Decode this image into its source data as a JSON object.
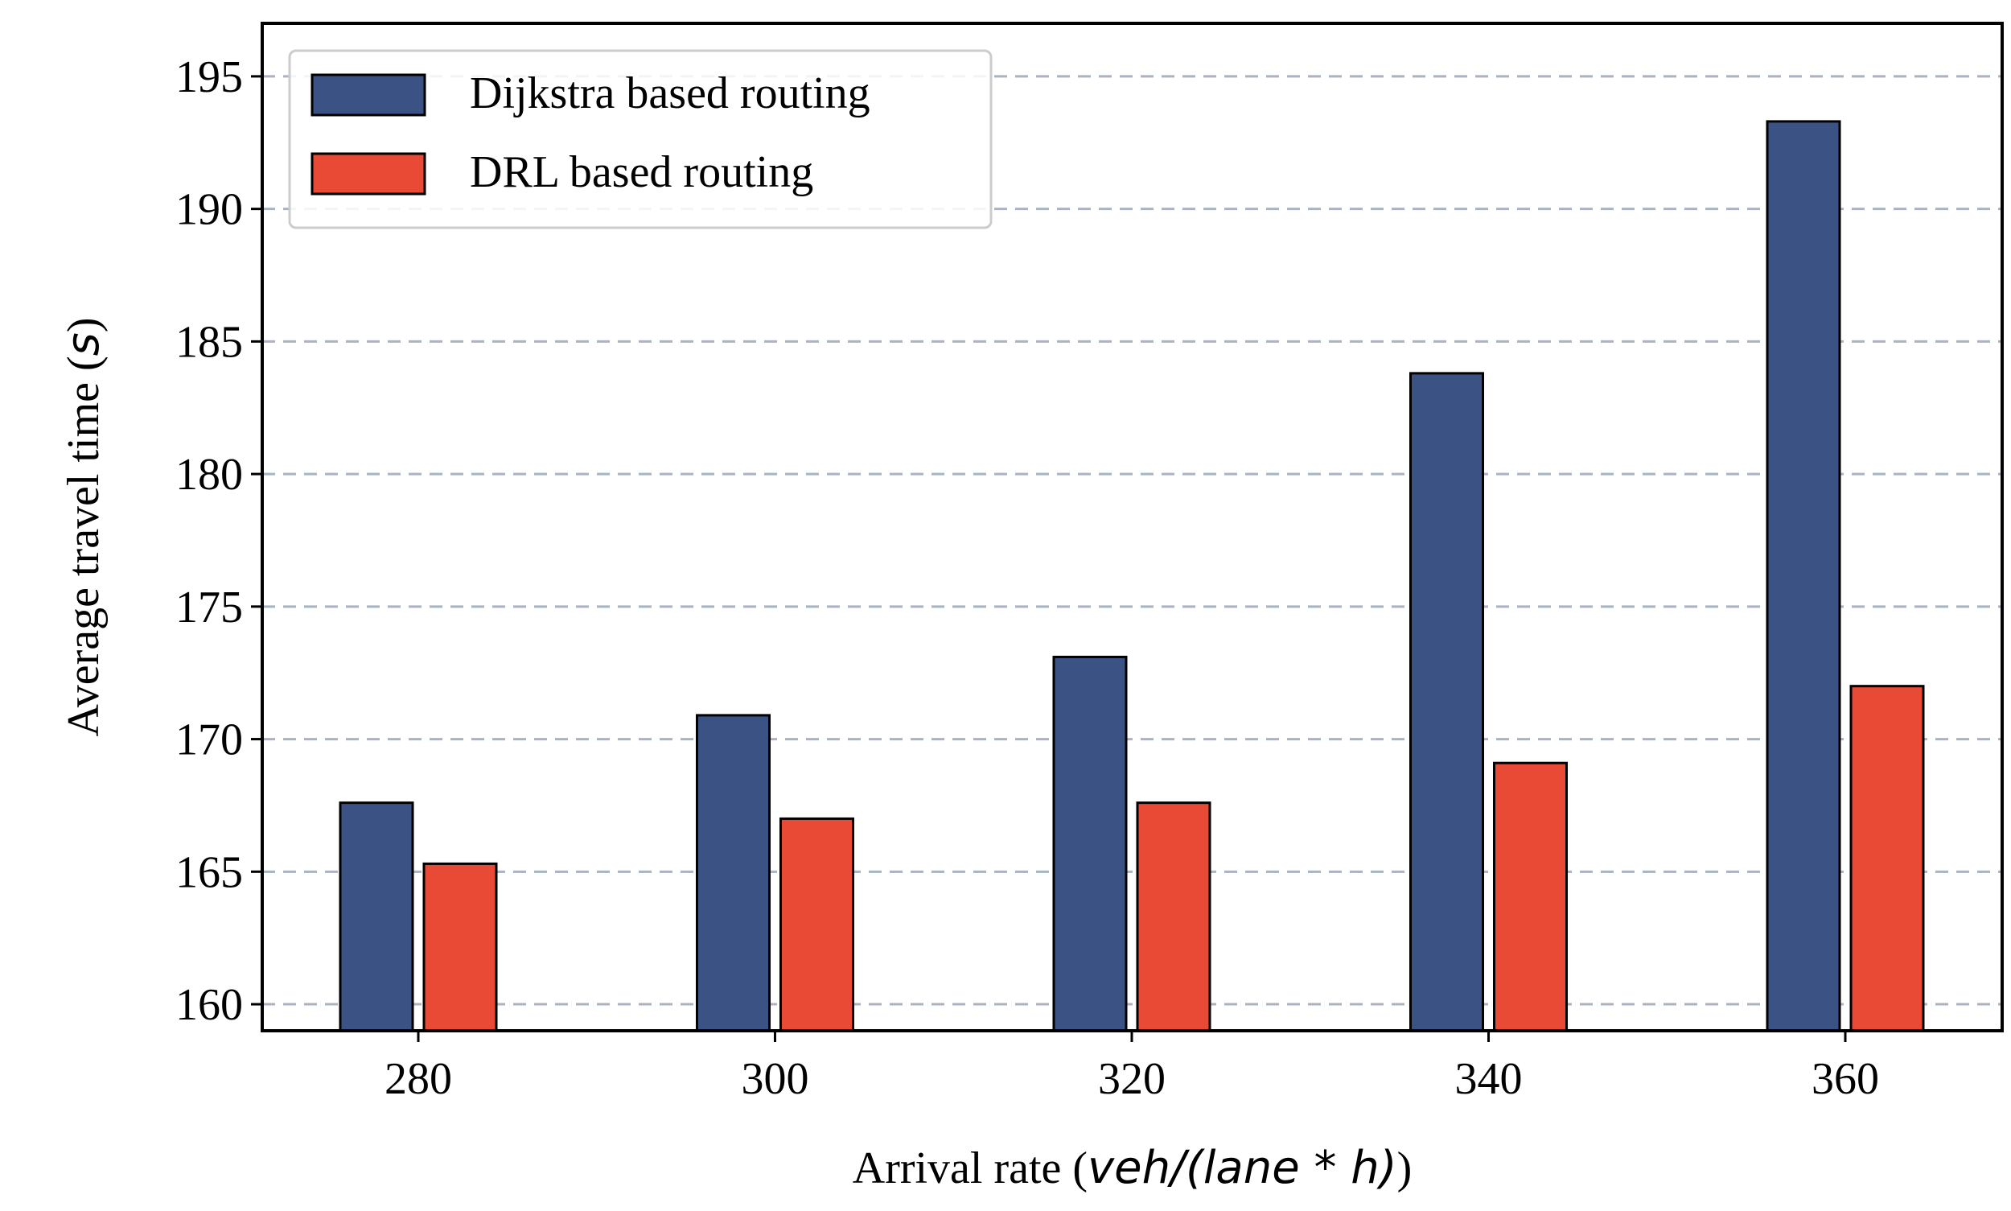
{
  "chart_data": {
    "type": "bar",
    "categories": [
      "280",
      "300",
      "320",
      "340",
      "360"
    ],
    "series": [
      {
        "name": "Dijkstra based routing",
        "color": "#3b5284",
        "values": [
          167.6,
          170.9,
          173.1,
          183.8,
          193.3
        ]
      },
      {
        "name": "DRL based routing",
        "color": "#e84a35",
        "values": [
          165.3,
          167.0,
          167.6,
          169.1,
          172.0
        ]
      }
    ],
    "xlabel": {
      "prefix": "Arrival rate (",
      "math": "veh/(lane * h)",
      "suffix": ")"
    },
    "ylabel": {
      "prefix": "Average travel time (",
      "math": "s",
      "suffix": ")"
    },
    "yticks": [
      "160",
      "165",
      "170",
      "175",
      "180",
      "185",
      "190",
      "195"
    ],
    "ylim": [
      159,
      197
    ],
    "grid": "horizontal dashed",
    "legend_position": "upper-left",
    "edge_color": "#000000",
    "grid_color": "#a9b3c1"
  }
}
